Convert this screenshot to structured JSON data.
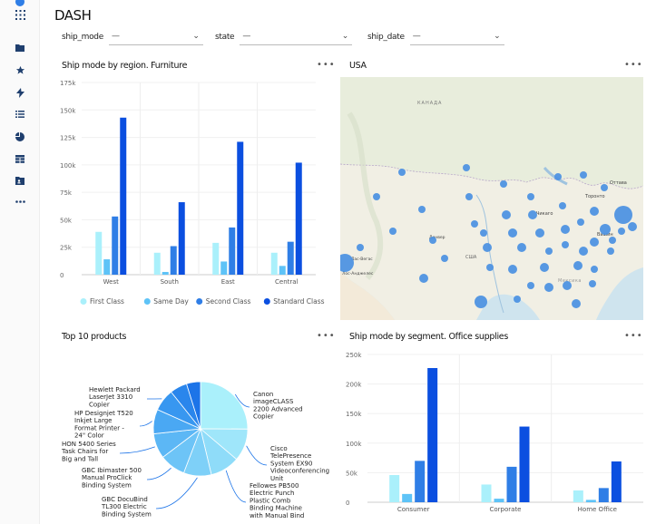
{
  "dash_title": "DASH",
  "filters": [
    {
      "label": "ship_mode",
      "value": "—"
    },
    {
      "label": "state",
      "value": "—"
    },
    {
      "label": "ship_date",
      "value": "—"
    }
  ],
  "sidebar_icons": [
    "apps-grid-icon",
    "folder-icon",
    "star-icon",
    "bolt-icon",
    "list-icon",
    "pie-icon",
    "table-icon",
    "id-card-icon",
    "more-icon"
  ],
  "panels": {
    "furniture": {
      "title": "Ship mode by region. Furniture",
      "menu": "•••"
    },
    "usa": {
      "title": "USA",
      "menu": "•••"
    },
    "top10": {
      "title": "Top 10 products",
      "menu": "•••"
    },
    "office": {
      "title": "Ship mode by segment. Office supplies",
      "menu": "•••"
    }
  },
  "map_labels": {
    "canada": "КАНАДА",
    "usa": "США",
    "ottawa": "Оттава",
    "toronto": "Торонто",
    "chicago": "Чикаго",
    "washington": "Вашин",
    "denver": "Денвер",
    "las_vegas": "Лас-Вегас",
    "los_angeles": "Лос-Анджелес",
    "mexico": "Мексика"
  },
  "colors": {
    "first_class": "#aaf0fb",
    "same_day": "#5ec3f7",
    "second_class": "#2f7ee6",
    "standard_class": "#0b4fe0",
    "map_bubble": "#4a90e2"
  },
  "chart_data": [
    {
      "type": "bar",
      "title": "Ship mode by region. Furniture",
      "categories": [
        "West",
        "South",
        "East",
        "Central"
      ],
      "series": [
        {
          "name": "First Class",
          "values": [
            39000,
            20000,
            29000,
            20000
          ]
        },
        {
          "name": "Same Day",
          "values": [
            14000,
            2500,
            12000,
            8000
          ]
        },
        {
          "name": "Second Class",
          "values": [
            53000,
            26000,
            43000,
            30000
          ]
        },
        {
          "name": "Standard Class",
          "values": [
            143000,
            66000,
            121000,
            102000
          ]
        }
      ],
      "yticks": [
        "0",
        "25k",
        "50k",
        "75k",
        "100k",
        "125k",
        "150k",
        "175k"
      ],
      "ylim": [
        0,
        175000
      ],
      "legend": "bottom"
    },
    {
      "type": "bar",
      "title": "Ship mode by segment. Office supplies",
      "categories": [
        "Consumer",
        "Corporate",
        "Home Office"
      ],
      "series": [
        {
          "name": "First Class",
          "values": [
            46000,
            30000,
            20000
          ]
        },
        {
          "name": "Same Day",
          "values": [
            14000,
            6000,
            4000
          ]
        },
        {
          "name": "Second Class",
          "values": [
            70000,
            60000,
            24000
          ]
        },
        {
          "name": "Standard Class",
          "values": [
            227000,
            128000,
            69000
          ]
        }
      ],
      "yticks": [
        "0",
        "50k",
        "100k",
        "150k",
        "200k",
        "250k"
      ],
      "ylim": [
        0,
        250000
      ]
    },
    {
      "type": "pie",
      "title": "Top 10 products",
      "slices": [
        {
          "label": "Canon imageCLASS 2200 Advanced Copier",
          "value": 25.1
        },
        {
          "label": "Cisco TelePresence System EX90 Videoconferencing Unit",
          "value": 11.1
        },
        {
          "label": "Fellowes PB500 Electric Punch Plastic Comb Binding Machine with Manual Bind",
          "value": 10.1
        },
        {
          "label": "GBC DocuBind TL300 Electric Binding System",
          "value": 9.5
        },
        {
          "label": "GBC Ibimaster 500 Manual ProClick Binding System",
          "value": 8.9
        },
        {
          "label": "HON 5400 Series Task Chairs for Big and Tall",
          "value": 8.6
        },
        {
          "label": "HP Designjet T520 Inkjet Large Format Printer - 24\" Color",
          "value": 8.4
        },
        {
          "label": "Hewlett Packard LaserJet 3310 Copier",
          "value": 7.6
        },
        {
          "label": "",
          "value": 5.9
        },
        {
          "label": "",
          "value": 4.8
        }
      ]
    }
  ]
}
